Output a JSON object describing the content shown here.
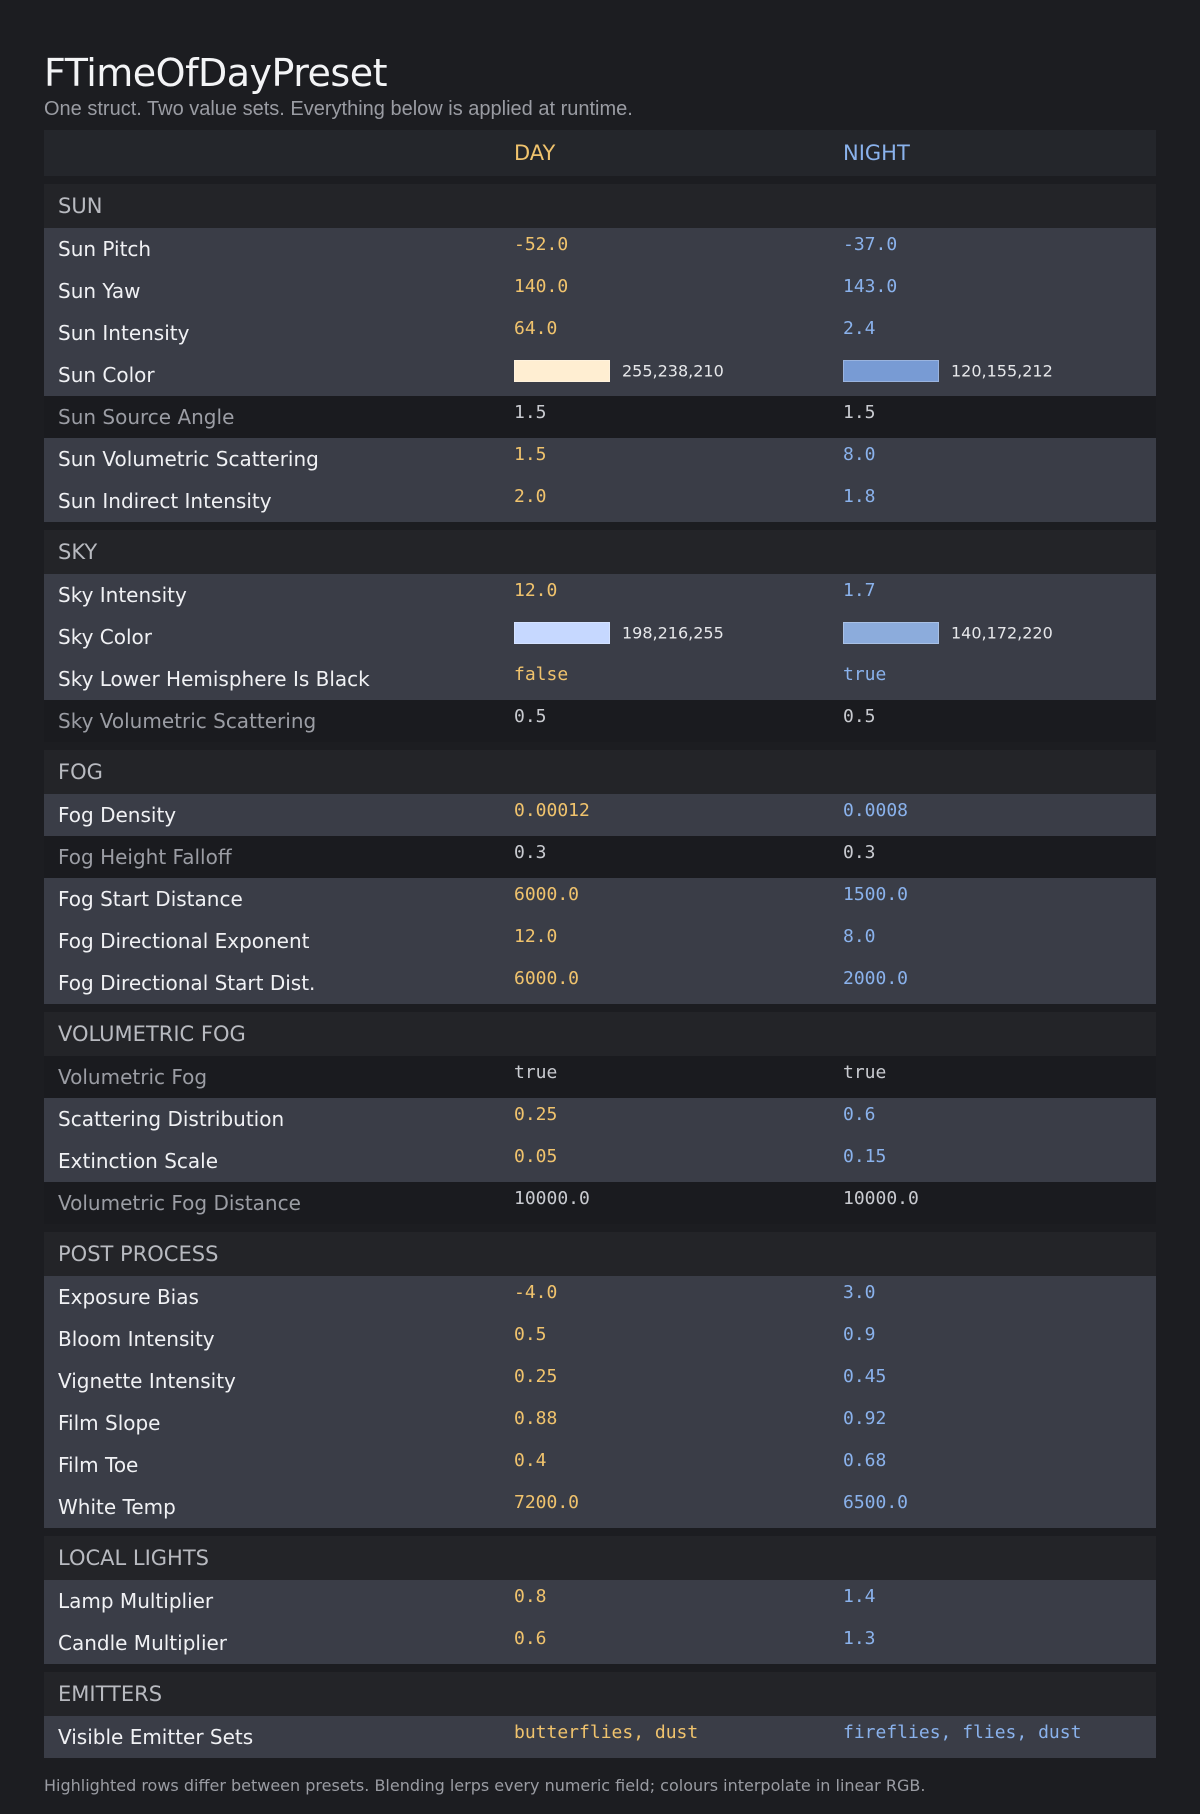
{
  "title": "FTimeOfDayPreset",
  "subtitle": "One struct. Two value sets. Everything below is applied at runtime.",
  "columns": {
    "day": "DAY",
    "night": "NIGHT"
  },
  "colors": {
    "day_accent": "#f0c36d",
    "night_accent": "#8ab2ec",
    "highlight_row": "#3a3d47"
  },
  "sections": [
    {
      "name": "SUN",
      "rows": [
        {
          "label": "Sun Pitch",
          "day": "-52.0",
          "night": "-37.0",
          "hl": true
        },
        {
          "label": "Sun Yaw",
          "day": "140.0",
          "night": "143.0",
          "hl": true
        },
        {
          "label": "Sun Intensity",
          "day": "64.0",
          "night": "2.4",
          "hl": true
        },
        {
          "label": "Sun Color",
          "day": "255,238,210",
          "night": "120,155,212",
          "hl": true,
          "color": true,
          "day_color": "#ffeed2",
          "night_color": "#789bd4"
        },
        {
          "label": "Sun Source Angle",
          "day": "1.5",
          "night": "1.5",
          "hl": false
        },
        {
          "label": "Sun Volumetric Scattering",
          "day": "1.5",
          "night": "8.0",
          "hl": true
        },
        {
          "label": "Sun Indirect Intensity",
          "day": "2.0",
          "night": "1.8",
          "hl": true
        }
      ]
    },
    {
      "name": "SKY",
      "rows": [
        {
          "label": "Sky Intensity",
          "day": "12.0",
          "night": "1.7",
          "hl": true
        },
        {
          "label": "Sky Color",
          "day": "198,216,255",
          "night": "140,172,220",
          "hl": true,
          "color": true,
          "day_color": "#c6d8ff",
          "night_color": "#8cacdc"
        },
        {
          "label": "Sky Lower Hemisphere Is Black",
          "day": "false",
          "night": "true",
          "hl": true
        },
        {
          "label": "Sky Volumetric Scattering",
          "day": "0.5",
          "night": "0.5",
          "hl": false
        }
      ]
    },
    {
      "name": "FOG",
      "rows": [
        {
          "label": "Fog Density",
          "day": "0.00012",
          "night": "0.0008",
          "hl": true
        },
        {
          "label": "Fog Height Falloff",
          "day": "0.3",
          "night": "0.3",
          "hl": false
        },
        {
          "label": "Fog Start Distance",
          "day": "6000.0",
          "night": "1500.0",
          "hl": true
        },
        {
          "label": "Fog Directional Exponent",
          "day": "12.0",
          "night": "8.0",
          "hl": true
        },
        {
          "label": "Fog Directional Start Dist.",
          "day": "6000.0",
          "night": "2000.0",
          "hl": true
        }
      ]
    },
    {
      "name": "VOLUMETRIC FOG",
      "rows": [
        {
          "label": "Volumetric Fog",
          "day": "true",
          "night": "true",
          "hl": false
        },
        {
          "label": "Scattering Distribution",
          "day": "0.25",
          "night": "0.6",
          "hl": true
        },
        {
          "label": "Extinction Scale",
          "day": "0.05",
          "night": "0.15",
          "hl": true
        },
        {
          "label": "Volumetric Fog Distance",
          "day": "10000.0",
          "night": "10000.0",
          "hl": false
        }
      ]
    },
    {
      "name": "POST PROCESS",
      "rows": [
        {
          "label": "Exposure Bias",
          "day": "-4.0",
          "night": "3.0",
          "hl": true
        },
        {
          "label": "Bloom Intensity",
          "day": "0.5",
          "night": "0.9",
          "hl": true
        },
        {
          "label": "Vignette Intensity",
          "day": "0.25",
          "night": "0.45",
          "hl": true
        },
        {
          "label": "Film Slope",
          "day": "0.88",
          "night": "0.92",
          "hl": true
        },
        {
          "label": "Film Toe",
          "day": "0.4",
          "night": "0.68",
          "hl": true
        },
        {
          "label": "White Temp",
          "day": "7200.0",
          "night": "6500.0",
          "hl": true
        }
      ]
    },
    {
      "name": "LOCAL LIGHTS",
      "rows": [
        {
          "label": "Lamp Multiplier",
          "day": "0.8",
          "night": "1.4",
          "hl": true
        },
        {
          "label": "Candle Multiplier",
          "day": "0.6",
          "night": "1.3",
          "hl": true
        }
      ]
    },
    {
      "name": "EMITTERS",
      "rows": [
        {
          "label": "Visible Emitter Sets",
          "day": "butterflies, dust",
          "night": "fireflies, flies, dust",
          "hl": true
        }
      ]
    }
  ],
  "footnote": "Highlighted rows differ between presets.  Blending lerps every numeric field; colours interpolate in linear RGB."
}
